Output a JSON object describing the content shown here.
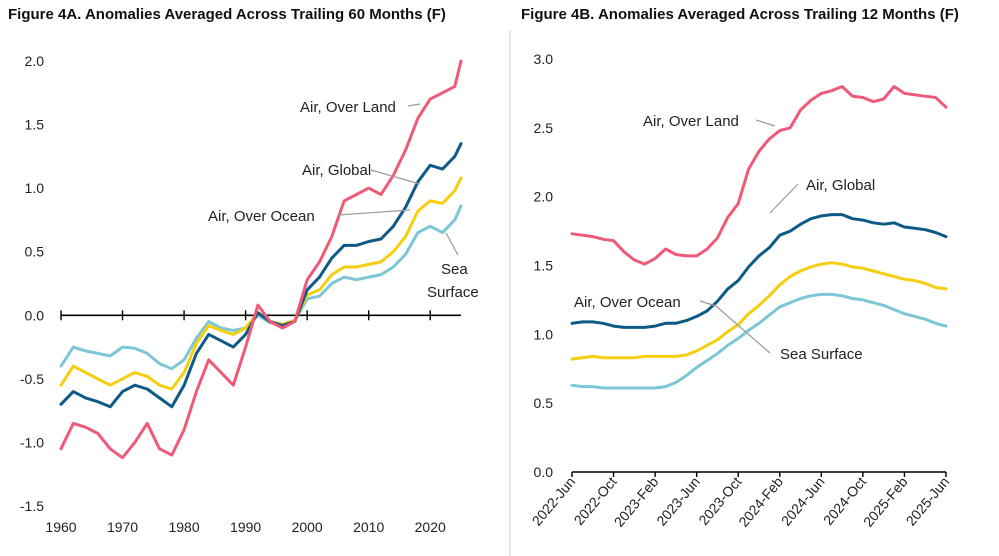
{
  "colors": {
    "land": "#ef5a78",
    "global": "#0d5a86",
    "ocean": "#f5ce0f",
    "sea": "#7cc6d6",
    "axis": "#000000",
    "leader": "#9a9a9a",
    "divider": "#cfcfcf"
  },
  "chart_data": [
    {
      "type": "line",
      "title": "Figure 4A. Anomalies Averaged Across Trailing 60 Months (F)",
      "xlabel": "",
      "ylabel": "",
      "xlim": [
        1960,
        2025
      ],
      "ylim": [
        -1.5,
        2.0
      ],
      "xticks": [
        1960,
        1970,
        1980,
        1990,
        2000,
        2010,
        2020
      ],
      "xtick_labels": [
        "1960",
        "1970",
        "1980",
        "1990",
        "2000",
        "2010",
        "2020"
      ],
      "yticks": [
        -1.5,
        -1.0,
        -0.5,
        0.0,
        0.5,
        1.0,
        1.5,
        2.0
      ],
      "ytick_labels": [
        "-1.5",
        "-1.0",
        "-0.5",
        "0.0",
        "0.5",
        "1.0",
        "1.5",
        "2.0"
      ],
      "x": [
        1960,
        1962,
        1964,
        1966,
        1968,
        1970,
        1972,
        1974,
        1976,
        1978,
        1980,
        1982,
        1984,
        1986,
        1988,
        1990,
        1992,
        1994,
        1996,
        1998,
        2000,
        2002,
        2004,
        2006,
        2008,
        2010,
        2012,
        2014,
        2016,
        2018,
        2020,
        2022,
        2024,
        2025
      ],
      "series": [
        {
          "key": "land",
          "name": "Air, Over Land",
          "values": [
            -1.05,
            -0.85,
            -0.88,
            -0.93,
            -1.05,
            -1.12,
            -1.0,
            -0.85,
            -1.05,
            -1.1,
            -0.9,
            -0.6,
            -0.35,
            -0.45,
            -0.55,
            -0.25,
            0.08,
            -0.05,
            -0.1,
            -0.05,
            0.28,
            0.42,
            0.62,
            0.9,
            0.95,
            1.0,
            0.95,
            1.1,
            1.3,
            1.55,
            1.7,
            1.75,
            1.8,
            2.0
          ]
        },
        {
          "key": "global",
          "name": "Air, Global",
          "values": [
            -0.7,
            -0.6,
            -0.65,
            -0.68,
            -0.72,
            -0.6,
            -0.55,
            -0.58,
            -0.65,
            -0.72,
            -0.55,
            -0.3,
            -0.15,
            -0.2,
            -0.25,
            -0.15,
            0.02,
            -0.05,
            -0.08,
            -0.05,
            0.2,
            0.3,
            0.45,
            0.55,
            0.55,
            0.58,
            0.6,
            0.7,
            0.85,
            1.05,
            1.18,
            1.15,
            1.25,
            1.35
          ]
        },
        {
          "key": "ocean",
          "name": "Air, Over Ocean",
          "values": [
            -0.55,
            -0.4,
            -0.45,
            -0.5,
            -0.55,
            -0.5,
            -0.45,
            -0.48,
            -0.55,
            -0.58,
            -0.45,
            -0.22,
            -0.08,
            -0.12,
            -0.15,
            -0.1,
            0.02,
            -0.05,
            -0.07,
            -0.04,
            0.16,
            0.2,
            0.32,
            0.38,
            0.38,
            0.4,
            0.42,
            0.5,
            0.62,
            0.82,
            0.9,
            0.88,
            0.98,
            1.08
          ]
        },
        {
          "key": "sea",
          "name": "Sea Surface",
          "values": [
            -0.4,
            -0.25,
            -0.28,
            -0.3,
            -0.32,
            -0.25,
            -0.26,
            -0.3,
            -0.38,
            -0.42,
            -0.35,
            -0.18,
            -0.05,
            -0.1,
            -0.12,
            -0.1,
            0.0,
            -0.06,
            -0.07,
            -0.04,
            0.13,
            0.15,
            0.25,
            0.3,
            0.28,
            0.3,
            0.32,
            0.38,
            0.48,
            0.65,
            0.7,
            0.65,
            0.75,
            0.86
          ]
        }
      ],
      "annotations": [
        {
          "text": "Air, Over Land",
          "series": "land"
        },
        {
          "text": "Air, Global",
          "series": "global"
        },
        {
          "text": "Air, Over Ocean",
          "series": "ocean"
        },
        {
          "text": "Sea",
          "series": "sea"
        },
        {
          "text": "Surface",
          "series": "sea"
        }
      ]
    },
    {
      "type": "line",
      "title": "Figure 4B. Anomalies Averaged Across Trailing 12 Months (F)",
      "xlabel": "",
      "ylabel": "",
      "xlim": [
        0,
        36
      ],
      "ylim": [
        0.0,
        3.0
      ],
      "xticks": [
        0,
        4,
        8,
        12,
        16,
        20,
        24,
        28,
        32,
        36
      ],
      "xtick_labels": [
        "2022-Jun",
        "2022-Oct",
        "2023-Feb",
        "2023-Jun",
        "2023-Oct",
        "2024-Feb",
        "2024-Jun",
        "2024-Oct",
        "2025-Feb",
        "2025-Jun"
      ],
      "yticks": [
        0.0,
        0.5,
        1.0,
        1.5,
        2.0,
        2.5,
        3.0
      ],
      "ytick_labels": [
        "0.0",
        "0.5",
        "1.0",
        "1.5",
        "2.0",
        "2.5",
        "3.0"
      ],
      "x": [
        0,
        1,
        2,
        3,
        4,
        5,
        6,
        7,
        8,
        9,
        10,
        11,
        12,
        13,
        14,
        15,
        16,
        17,
        18,
        19,
        20,
        21,
        22,
        23,
        24,
        25,
        26,
        27,
        28,
        29,
        30,
        31,
        32,
        33,
        34,
        35,
        36
      ],
      "series": [
        {
          "key": "land",
          "name": "Air, Over Land",
          "values": [
            1.73,
            1.72,
            1.71,
            1.69,
            1.68,
            1.6,
            1.54,
            1.51,
            1.55,
            1.62,
            1.58,
            1.57,
            1.57,
            1.62,
            1.7,
            1.85,
            1.95,
            2.2,
            2.33,
            2.42,
            2.48,
            2.5,
            2.63,
            2.7,
            2.75,
            2.77,
            2.8,
            2.73,
            2.72,
            2.69,
            2.71,
            2.8,
            2.75,
            2.74,
            2.73,
            2.72,
            2.65
          ]
        },
        {
          "key": "global",
          "name": "Air, Global",
          "values": [
            1.08,
            1.09,
            1.09,
            1.08,
            1.06,
            1.05,
            1.05,
            1.05,
            1.06,
            1.08,
            1.08,
            1.1,
            1.13,
            1.17,
            1.24,
            1.33,
            1.39,
            1.49,
            1.57,
            1.63,
            1.72,
            1.75,
            1.8,
            1.84,
            1.86,
            1.87,
            1.87,
            1.84,
            1.83,
            1.81,
            1.8,
            1.81,
            1.78,
            1.77,
            1.76,
            1.74,
            1.71
          ]
        },
        {
          "key": "ocean",
          "name": "Air, Over Ocean",
          "values": [
            0.82,
            0.83,
            0.84,
            0.83,
            0.83,
            0.83,
            0.83,
            0.84,
            0.84,
            0.84,
            0.84,
            0.85,
            0.88,
            0.92,
            0.96,
            1.02,
            1.07,
            1.15,
            1.21,
            1.28,
            1.36,
            1.42,
            1.46,
            1.49,
            1.51,
            1.52,
            1.51,
            1.49,
            1.48,
            1.46,
            1.44,
            1.42,
            1.4,
            1.39,
            1.37,
            1.34,
            1.33
          ]
        },
        {
          "key": "sea",
          "name": "Sea Surface",
          "values": [
            0.63,
            0.62,
            0.62,
            0.61,
            0.61,
            0.61,
            0.61,
            0.61,
            0.61,
            0.62,
            0.65,
            0.7,
            0.76,
            0.81,
            0.86,
            0.92,
            0.97,
            1.03,
            1.08,
            1.14,
            1.2,
            1.23,
            1.26,
            1.28,
            1.29,
            1.29,
            1.28,
            1.26,
            1.25,
            1.23,
            1.21,
            1.18,
            1.15,
            1.13,
            1.11,
            1.08,
            1.06
          ]
        }
      ],
      "annotations": [
        {
          "text": "Air, Over Land",
          "series": "land"
        },
        {
          "text": "Air, Global",
          "series": "global"
        },
        {
          "text": "Air, Over Ocean",
          "series": "ocean"
        },
        {
          "text": "Sea Surface",
          "series": "sea"
        }
      ]
    }
  ]
}
